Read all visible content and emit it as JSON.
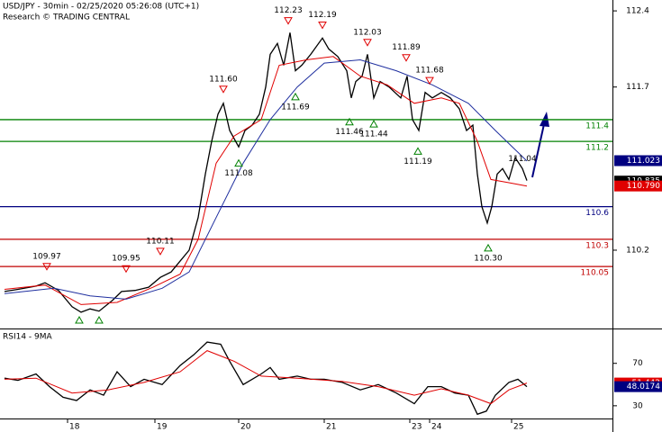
{
  "chart_data": [
    {
      "type": "line",
      "title": "USD/JPY - 30min - 02/25/2020 05:26:08 (UTC+1)",
      "subtitle": "Research © TRADING CENTRAL",
      "xlim": [
        0,
        340
      ],
      "ylim": [
        109.48,
        112.5
      ],
      "yticks": [
        112.4,
        111.7,
        110.2
      ],
      "series": [
        {
          "color": "#000000",
          "x": [
            2.5,
            10,
            20,
            25,
            32.5,
            40,
            45,
            50,
            55,
            62.5,
            67.5,
            75,
            82.5,
            89,
            95,
            100,
            105,
            110,
            114,
            117.5,
            121,
            124,
            127.5,
            132.5,
            136,
            140,
            144,
            147.5,
            150,
            154,
            157.5,
            161,
            164,
            167.5,
            172.5,
            179,
            182.5,
            187.5,
            192.5,
            195,
            197.5,
            201,
            204,
            207.5,
            211,
            216,
            222.5,
            226,
            229,
            232.5,
            236,
            240,
            245,
            250,
            255,
            259,
            262.5,
            265,
            267.5,
            270.5,
            273,
            276,
            279,
            282.5,
            286,
            290,
            292.5
          ],
          "values": [
            109.82,
            109.84,
            109.87,
            109.9,
            109.83,
            109.68,
            109.63,
            109.66,
            109.64,
            109.74,
            109.82,
            109.83,
            109.86,
            109.95,
            110.0,
            110.1,
            110.2,
            110.5,
            110.9,
            111.2,
            111.45,
            111.55,
            111.3,
            111.15,
            111.3,
            111.35,
            111.45,
            111.7,
            112.0,
            112.1,
            111.9,
            112.2,
            111.85,
            111.9,
            112.0,
            112.15,
            112.05,
            111.98,
            111.85,
            111.6,
            111.75,
            111.8,
            112.0,
            111.6,
            111.75,
            111.7,
            111.6,
            111.8,
            111.4,
            111.3,
            111.65,
            111.6,
            111.65,
            111.6,
            111.5,
            111.3,
            111.35,
            110.9,
            110.6,
            110.45,
            110.6,
            110.9,
            110.95,
            110.85,
            111.05,
            110.95,
            110.84
          ]
        },
        {
          "color": "#e00000",
          "x": [
            2.5,
            25,
            45,
            65,
            85,
            100,
            110,
            120,
            130,
            145,
            155,
            170,
            185,
            200,
            215,
            230,
            245,
            255,
            265,
            272.5,
            282.5,
            292.5
          ],
          "values": [
            109.84,
            109.88,
            109.7,
            109.72,
            109.86,
            109.98,
            110.3,
            111.0,
            111.25,
            111.4,
            111.9,
            111.95,
            111.98,
            111.8,
            111.72,
            111.55,
            111.6,
            111.55,
            111.2,
            110.85,
            110.82,
            110.79
          ]
        },
        {
          "color": "#1f2f9f",
          "x": [
            2.5,
            30,
            50,
            70,
            90,
            105,
            120,
            135,
            150,
            165,
            180,
            200,
            220,
            240,
            260,
            275,
            292.5
          ],
          "values": [
            109.8,
            109.85,
            109.78,
            109.75,
            109.85,
            110.0,
            110.5,
            111.0,
            111.4,
            111.7,
            111.92,
            111.95,
            111.85,
            111.72,
            111.55,
            111.3,
            111.02
          ]
        }
      ],
      "levels": [
        {
          "value": 111.4,
          "color": "#008000"
        },
        {
          "value": 111.2,
          "color": "#008000"
        },
        {
          "value": 110.6,
          "color": "#000080"
        },
        {
          "value": 110.3,
          "color": "#c00000"
        },
        {
          "value": 110.05,
          "color": "#c00000"
        }
      ],
      "annotations": [
        {
          "x": 26,
          "value": 109.97,
          "kind": "high"
        },
        {
          "x": 70,
          "value": 109.95,
          "kind": "high"
        },
        {
          "x": 89,
          "value": 110.11,
          "kind": "high"
        },
        {
          "x": 124,
          "value": 111.6,
          "label": "111.60",
          "kind": "high"
        },
        {
          "x": 132.5,
          "value": 111.08,
          "kind": "low"
        },
        {
          "x": 160,
          "value": 112.23,
          "kind": "high"
        },
        {
          "x": 179,
          "value": 112.19,
          "kind": "high"
        },
        {
          "x": 164,
          "value": 111.69,
          "kind": "low"
        },
        {
          "x": 204,
          "value": 112.03,
          "kind": "high"
        },
        {
          "x": 194,
          "value": 111.46,
          "kind": "low"
        },
        {
          "x": 207.5,
          "value": 111.44,
          "kind": "low"
        },
        {
          "x": 225.5,
          "value": 111.89,
          "kind": "high"
        },
        {
          "x": 232,
          "value": 111.19,
          "kind": "low"
        },
        {
          "x": 238.5,
          "value": 111.68,
          "kind": "high"
        },
        {
          "x": 290,
          "value": 111.04,
          "kind": "note"
        },
        {
          "x": 271,
          "value": 110.3,
          "label": "110.30",
          "kind": "low"
        }
      ],
      "price_tags": [
        {
          "value": 111.023,
          "color": "#000080"
        },
        {
          "value": 110.835,
          "color": "#000000"
        },
        {
          "value": 110.79,
          "label": "110.790",
          "color": "#e00000"
        }
      ]
    },
    {
      "type": "line",
      "title": "RSI14 - 9MA",
      "xlim": [
        0,
        340
      ],
      "ylim": [
        18,
        102
      ],
      "yticks": [
        70,
        30
      ],
      "xticks": [
        {
          "value": 37.5,
          "label": "18"
        },
        {
          "value": 86,
          "label": "19"
        },
        {
          "value": 132.5,
          "label": "20"
        },
        {
          "value": 180,
          "label": "21"
        },
        {
          "value": 227.5,
          "label": "23"
        },
        {
          "value": 238.5,
          "label": "24"
        },
        {
          "value": 284,
          "label": "25"
        }
      ],
      "series": [
        {
          "color": "#000000",
          "x": [
            2.5,
            10,
            20,
            27.5,
            35,
            42.5,
            50,
            57.5,
            65,
            72.5,
            80,
            90,
            100,
            107.5,
            115,
            122.5,
            127.5,
            135,
            145,
            150,
            155,
            165,
            172.5,
            180,
            190,
            200,
            210,
            220,
            230,
            237.5,
            245,
            252.5,
            260,
            265,
            270,
            275,
            282.5,
            287.5,
            292.5
          ],
          "values": [
            56,
            54,
            60,
            48,
            38,
            35,
            45,
            40,
            62,
            48,
            55,
            50,
            68,
            78,
            90,
            88,
            72,
            50,
            60,
            66,
            55,
            58,
            55,
            55,
            52,
            45,
            50,
            42,
            32,
            48,
            48,
            42,
            40,
            22,
            25,
            40,
            52,
            55,
            48
          ]
        },
        {
          "color": "#e00000",
          "x": [
            2.5,
            20,
            40,
            60,
            80,
            100,
            115,
            130,
            145,
            165,
            190,
            210,
            230,
            245,
            260,
            272.5,
            282.5,
            292.5
          ],
          "values": [
            55,
            56,
            42,
            45,
            52,
            62,
            82,
            72,
            58,
            56,
            53,
            48,
            40,
            46,
            40,
            32,
            45,
            51.4
          ]
        }
      ],
      "price_tags": [
        {
          "value": 51.442,
          "color": "#e00000"
        },
        {
          "value": 48.0174,
          "color": "#000080"
        }
      ]
    }
  ]
}
